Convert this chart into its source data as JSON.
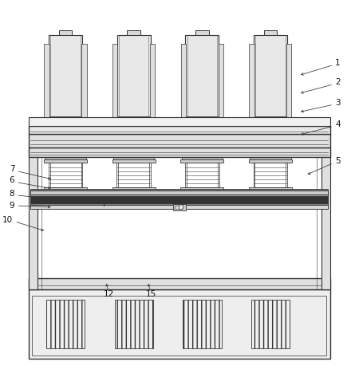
{
  "bg_color": "#ffffff",
  "lc": "#666666",
  "dc": "#333333",
  "mc": "#999999",
  "figsize": [
    4.45,
    4.88
  ],
  "dpi": 100,
  "label_positions": {
    "1": [
      0.915,
      0.87,
      0.82,
      0.83
    ],
    "2": [
      0.915,
      0.82,
      0.82,
      0.77
    ],
    "3": [
      0.915,
      0.76,
      0.82,
      0.72
    ],
    "4": [
      0.915,
      0.695,
      0.82,
      0.665
    ],
    "5": [
      0.915,
      0.595,
      0.87,
      0.54
    ],
    "6": [
      0.055,
      0.545,
      0.155,
      0.512
    ],
    "7": [
      0.055,
      0.575,
      0.155,
      0.538
    ],
    "8": [
      0.055,
      0.505,
      0.155,
      0.486
    ],
    "9": [
      0.055,
      0.47,
      0.155,
      0.462
    ],
    "10": [
      0.05,
      0.425,
      0.14,
      0.39
    ],
    "12": [
      0.31,
      0.22,
      0.295,
      0.255
    ],
    "15": [
      0.43,
      0.22,
      0.415,
      0.255
    ]
  }
}
